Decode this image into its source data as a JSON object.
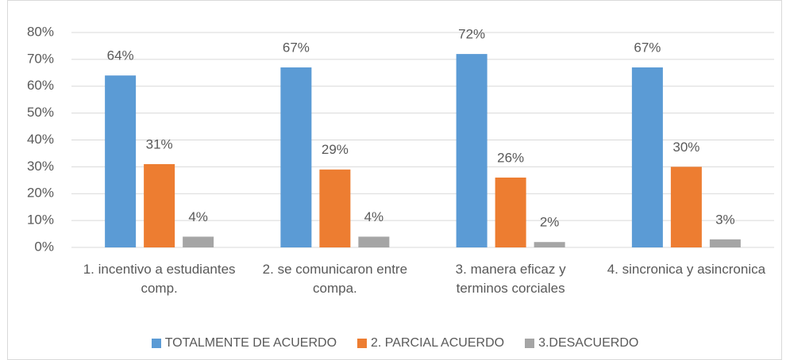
{
  "chart_data": {
    "type": "bar",
    "categories": [
      "1. incentivo a estudiantes comp.",
      "2. se comunicaron entre compa.",
      "3. manera eficaz y terminos corciales",
      "4. sincronica y asincronica"
    ],
    "series": [
      {
        "name": "TOTALMENTE DE ACUERDO",
        "color": "#5b9bd5",
        "values": [
          64,
          67,
          72,
          67
        ],
        "value_labels": [
          "64%",
          "67%",
          "72%",
          "67%"
        ]
      },
      {
        "name": "2. PARCIAL ACUERDO",
        "color": "#ed7d31",
        "values": [
          31,
          29,
          26,
          30
        ],
        "value_labels": [
          "31%",
          "29%",
          "26%",
          "30%"
        ]
      },
      {
        "name": "3.DESACUERDO",
        "color": "#a5a5a5",
        "values": [
          4,
          4,
          2,
          3
        ],
        "value_labels": [
          "4%",
          "4%",
          "2%",
          "3%"
        ]
      }
    ],
    "ylim": [
      0,
      80
    ],
    "yticks": [
      {
        "value": 0,
        "label": "0%"
      },
      {
        "value": 10,
        "label": "10%"
      },
      {
        "value": 20,
        "label": "20%"
      },
      {
        "value": 30,
        "label": "30%"
      },
      {
        "value": 40,
        "label": "40%"
      },
      {
        "value": 50,
        "label": "50%"
      },
      {
        "value": 60,
        "label": "60%"
      },
      {
        "value": 70,
        "label": "70%"
      },
      {
        "value": 80,
        "label": "80%"
      }
    ],
    "grid": true,
    "legend": "bottom"
  }
}
